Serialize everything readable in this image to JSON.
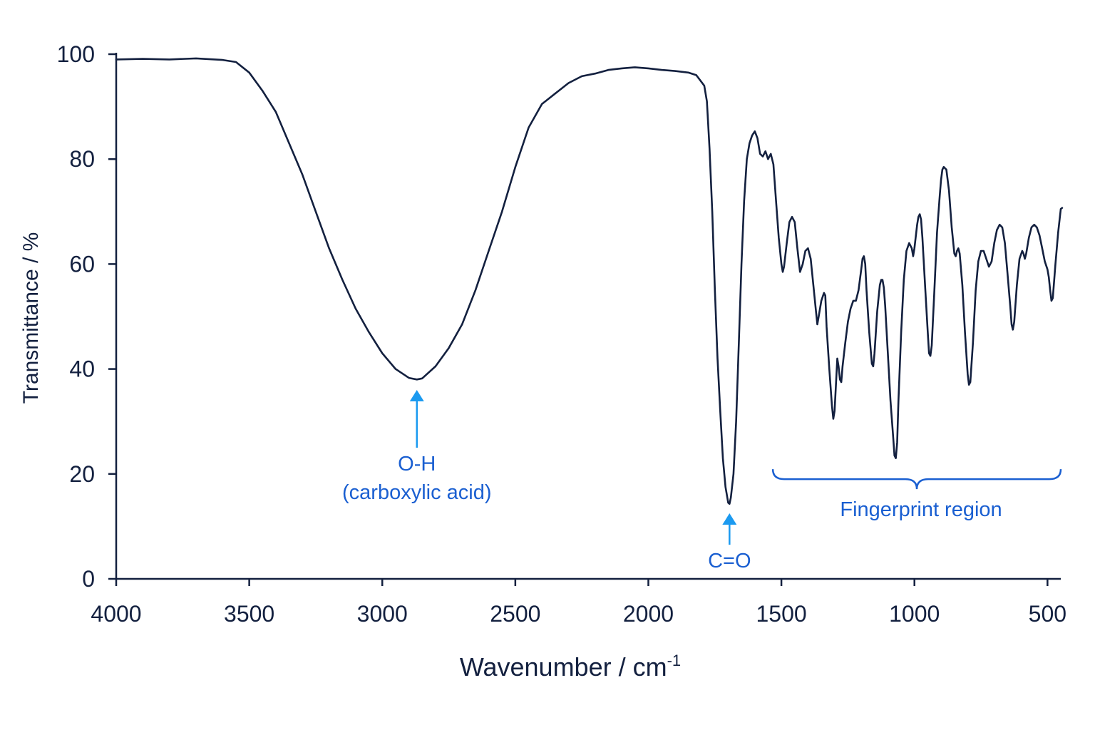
{
  "chart_data": {
    "type": "line",
    "xlabel": "Wavenumber / cm",
    "xlabel_superscript": "-1",
    "ylabel": "Transmittance / %",
    "xlim": [
      4000,
      450
    ],
    "x_reversed": true,
    "ylim": [
      0,
      100
    ],
    "xticks": [
      4000,
      3500,
      3000,
      2500,
      2000,
      1500,
      1000,
      500
    ],
    "yticks": [
      0,
      20,
      40,
      60,
      80,
      100
    ],
    "grid": false,
    "series": [
      {
        "values": [
          [
            4000,
            99.0
          ],
          [
            3900,
            99.1
          ],
          [
            3800,
            99.0
          ],
          [
            3700,
            99.2
          ],
          [
            3600,
            98.9
          ],
          [
            3550,
            98.5
          ],
          [
            3500,
            96.5
          ],
          [
            3450,
            93.0
          ],
          [
            3400,
            89.0
          ],
          [
            3350,
            83.0
          ],
          [
            3300,
            77.0
          ],
          [
            3250,
            70.0
          ],
          [
            3200,
            63.0
          ],
          [
            3150,
            57.0
          ],
          [
            3100,
            51.5
          ],
          [
            3050,
            47.0
          ],
          [
            3000,
            43.0
          ],
          [
            2950,
            40.0
          ],
          [
            2900,
            38.3
          ],
          [
            2870,
            38.0
          ],
          [
            2850,
            38.2
          ],
          [
            2800,
            40.5
          ],
          [
            2750,
            44.0
          ],
          [
            2700,
            48.5
          ],
          [
            2650,
            55.0
          ],
          [
            2600,
            62.5
          ],
          [
            2550,
            70.0
          ],
          [
            2500,
            78.5
          ],
          [
            2450,
            86.0
          ],
          [
            2400,
            90.5
          ],
          [
            2350,
            92.5
          ],
          [
            2300,
            94.5
          ],
          [
            2250,
            95.8
          ],
          [
            2200,
            96.3
          ],
          [
            2150,
            97.0
          ],
          [
            2100,
            97.3
          ],
          [
            2050,
            97.5
          ],
          [
            2000,
            97.3
          ],
          [
            1950,
            97.0
          ],
          [
            1900,
            96.8
          ],
          [
            1850,
            96.5
          ],
          [
            1820,
            96.0
          ],
          [
            1790,
            94.0
          ],
          [
            1780,
            91.0
          ],
          [
            1770,
            82.0
          ],
          [
            1760,
            70.0
          ],
          [
            1750,
            55.0
          ],
          [
            1740,
            42.0
          ],
          [
            1730,
            32.0
          ],
          [
            1720,
            23.0
          ],
          [
            1710,
            17.5
          ],
          [
            1700,
            14.5
          ],
          [
            1695,
            14.3
          ],
          [
            1690,
            15.5
          ],
          [
            1680,
            20.0
          ],
          [
            1670,
            30.0
          ],
          [
            1660,
            45.0
          ],
          [
            1650,
            60.0
          ],
          [
            1640,
            72.0
          ],
          [
            1630,
            80.0
          ],
          [
            1620,
            83.0
          ],
          [
            1610,
            84.5
          ],
          [
            1600,
            85.3
          ],
          [
            1590,
            84.0
          ],
          [
            1580,
            81.0
          ],
          [
            1570,
            80.5
          ],
          [
            1560,
            81.5
          ],
          [
            1550,
            80.0
          ],
          [
            1540,
            81.0
          ],
          [
            1530,
            79.0
          ],
          [
            1520,
            72.0
          ],
          [
            1510,
            65.0
          ],
          [
            1500,
            60.0
          ],
          [
            1495,
            58.5
          ],
          [
            1490,
            59.5
          ],
          [
            1480,
            64.0
          ],
          [
            1470,
            68.0
          ],
          [
            1460,
            69.0
          ],
          [
            1450,
            68.0
          ],
          [
            1440,
            63.0
          ],
          [
            1430,
            58.5
          ],
          [
            1420,
            60.0
          ],
          [
            1410,
            62.5
          ],
          [
            1400,
            63.0
          ],
          [
            1390,
            61.0
          ],
          [
            1380,
            56.0
          ],
          [
            1370,
            51.0
          ],
          [
            1365,
            48.5
          ],
          [
            1360,
            50.0
          ],
          [
            1350,
            53.0
          ],
          [
            1340,
            54.5
          ],
          [
            1335,
            54.0
          ],
          [
            1330,
            48.0
          ],
          [
            1320,
            40.0
          ],
          [
            1310,
            33.0
          ],
          [
            1305,
            30.5
          ],
          [
            1300,
            32.0
          ],
          [
            1290,
            42.0
          ],
          [
            1285,
            40.5
          ],
          [
            1280,
            38.0
          ],
          [
            1275,
            37.5
          ],
          [
            1270,
            40.5
          ],
          [
            1260,
            45.0
          ],
          [
            1250,
            49.0
          ],
          [
            1240,
            51.5
          ],
          [
            1230,
            53.0
          ],
          [
            1220,
            53.0
          ],
          [
            1210,
            55.0
          ],
          [
            1200,
            59.0
          ],
          [
            1195,
            61.0
          ],
          [
            1190,
            61.5
          ],
          [
            1185,
            60.0
          ],
          [
            1180,
            55.0
          ],
          [
            1170,
            47.0
          ],
          [
            1160,
            41.0
          ],
          [
            1155,
            40.5
          ],
          [
            1150,
            43.0
          ],
          [
            1140,
            51.0
          ],
          [
            1130,
            56.0
          ],
          [
            1125,
            57.0
          ],
          [
            1120,
            57.0
          ],
          [
            1115,
            55.5
          ],
          [
            1110,
            52.0
          ],
          [
            1100,
            43.0
          ],
          [
            1090,
            34.0
          ],
          [
            1080,
            27.0
          ],
          [
            1075,
            23.5
          ],
          [
            1070,
            23.0
          ],
          [
            1065,
            26.0
          ],
          [
            1060,
            34.0
          ],
          [
            1050,
            47.0
          ],
          [
            1040,
            57.0
          ],
          [
            1030,
            62.5
          ],
          [
            1020,
            64.0
          ],
          [
            1010,
            63.0
          ],
          [
            1005,
            61.5
          ],
          [
            1000,
            63.0
          ],
          [
            990,
            67.5
          ],
          [
            985,
            69.0
          ],
          [
            980,
            69.5
          ],
          [
            975,
            68.5
          ],
          [
            970,
            65.0
          ],
          [
            960,
            56.0
          ],
          [
            950,
            47.0
          ],
          [
            945,
            43.0
          ],
          [
            940,
            42.5
          ],
          [
            935,
            44.5
          ],
          [
            925,
            55.0
          ],
          [
            915,
            66.0
          ],
          [
            905,
            73.0
          ],
          [
            900,
            76.0
          ],
          [
            895,
            78.0
          ],
          [
            890,
            78.5
          ],
          [
            880,
            78.0
          ],
          [
            870,
            74.0
          ],
          [
            860,
            67.0
          ],
          [
            850,
            62.0
          ],
          [
            845,
            61.5
          ],
          [
            840,
            62.5
          ],
          [
            835,
            63.0
          ],
          [
            830,
            62.0
          ],
          [
            820,
            56.0
          ],
          [
            810,
            47.0
          ],
          [
            800,
            39.0
          ],
          [
            795,
            37.0
          ],
          [
            790,
            37.5
          ],
          [
            780,
            45.0
          ],
          [
            770,
            55.0
          ],
          [
            760,
            60.5
          ],
          [
            750,
            62.5
          ],
          [
            740,
            62.5
          ],
          [
            730,
            61.0
          ],
          [
            720,
            59.5
          ],
          [
            710,
            60.5
          ],
          [
            700,
            64.0
          ],
          [
            690,
            66.5
          ],
          [
            680,
            67.5
          ],
          [
            670,
            67.0
          ],
          [
            660,
            64.0
          ],
          [
            650,
            58.0
          ],
          [
            640,
            52.0
          ],
          [
            635,
            48.5
          ],
          [
            630,
            47.5
          ],
          [
            625,
            49.0
          ],
          [
            615,
            56.0
          ],
          [
            605,
            61.0
          ],
          [
            595,
            62.5
          ],
          [
            590,
            62.0
          ],
          [
            585,
            61.0
          ],
          [
            580,
            62.0
          ],
          [
            570,
            65.0
          ],
          [
            560,
            67.0
          ],
          [
            550,
            67.5
          ],
          [
            540,
            67.0
          ],
          [
            530,
            65.5
          ],
          [
            520,
            63.0
          ],
          [
            510,
            60.5
          ],
          [
            500,
            59.0
          ],
          [
            495,
            57.5
          ],
          [
            490,
            55.0
          ],
          [
            485,
            53.0
          ],
          [
            480,
            53.5
          ],
          [
            470,
            60.0
          ],
          [
            460,
            66.0
          ],
          [
            450,
            70.5
          ],
          [
            445,
            70.7
          ]
        ]
      }
    ],
    "annotations": [
      {
        "label_line1": "O-H",
        "label_line2": "(carboxylic acid)",
        "x": 2870,
        "y_from": 25,
        "y_to": 36
      },
      {
        "label_line1": "C=O",
        "x": 1695,
        "y_from": 6.5,
        "y_to": 12.5
      }
    ],
    "bracket": {
      "label": "Fingerprint region",
      "x_start": 1500,
      "x_end": 450,
      "y": 19
    },
    "colors": {
      "line": "#13203f",
      "axis": "#13203f",
      "text": "#13203f",
      "annotation_arrow": "#1b9af0",
      "annotation_text": "#1a5fd1"
    }
  }
}
